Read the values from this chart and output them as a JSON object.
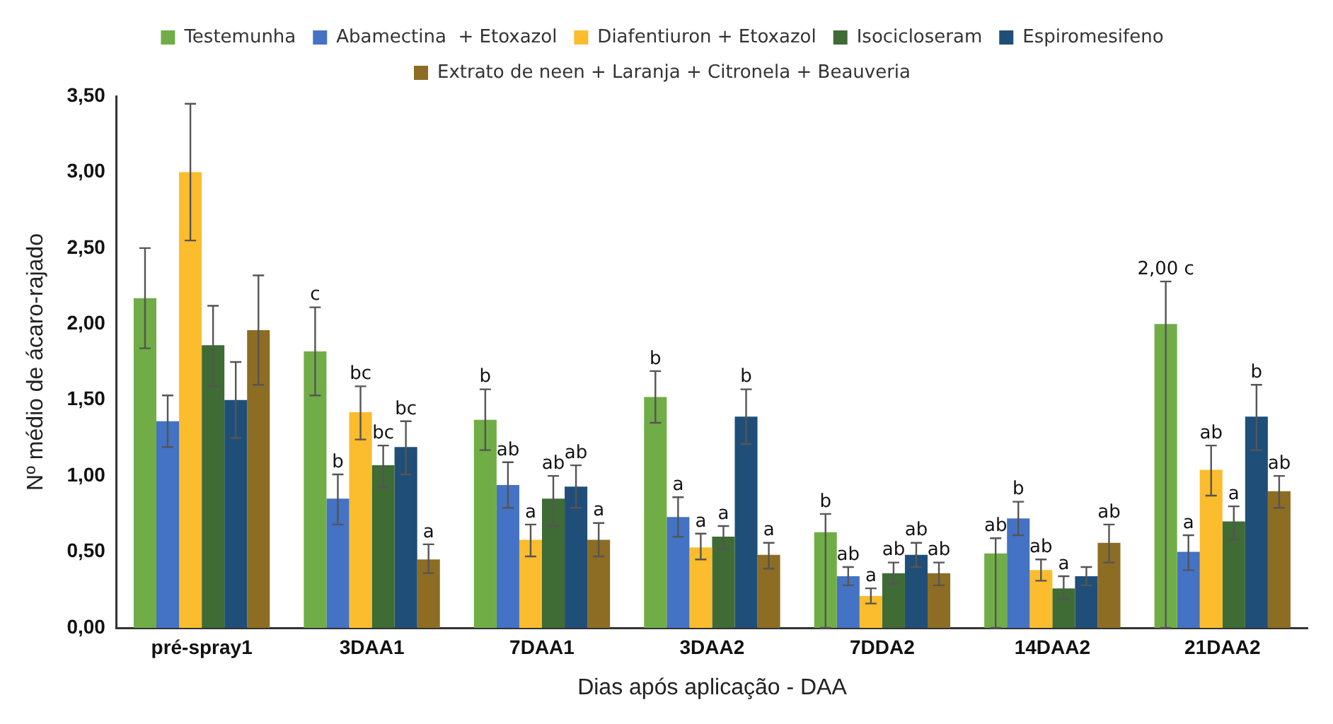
{
  "chart_data": {
    "type": "bar",
    "xlabel": "Dias após aplicação - DAA",
    "ylabel": "Nº médio de ácaro-rajado",
    "categories": [
      "pré-spray1",
      "3DAA1",
      "7DAA1",
      "3DAA2",
      "7DDA2",
      "14DAA2",
      "21DAA2"
    ],
    "ylim": [
      0,
      3.5
    ],
    "yticks": [
      {
        "value": 0,
        "label": "0,00"
      },
      {
        "value": 0.5,
        "label": "0,50"
      },
      {
        "value": 1,
        "label": "1,00"
      },
      {
        "value": 1.5,
        "label": "1,50"
      },
      {
        "value": 2,
        "label": "2,00"
      },
      {
        "value": 2.5,
        "label": "2,50"
      },
      {
        "value": 3,
        "label": "3,00"
      },
      {
        "value": 3.5,
        "label": "3,50"
      }
    ],
    "grid": false,
    "legend": "top",
    "series": [
      {
        "name": "Testemunha",
        "color": "#70ad47",
        "values": [
          2.17,
          1.82,
          1.37,
          1.52,
          0.63,
          0.49,
          2.0
        ],
        "errors": [
          [
            1.84,
            2.5
          ],
          [
            1.53,
            2.11
          ],
          [
            1.17,
            1.57
          ],
          [
            1.35,
            1.69
          ],
          [
            0,
            0.75
          ],
          [
            0,
            0.59
          ],
          [
            0,
            2.28
          ]
        ],
        "value_labels": [
          null,
          "c",
          "b",
          "b",
          "b",
          "ab",
          "2,00 c"
        ]
      },
      {
        "name": "Abamectina  + Etoxazol",
        "color": "#4472c4",
        "values": [
          1.36,
          0.85,
          0.94,
          0.73,
          0.34,
          0.72,
          0.5
        ],
        "errors": [
          [
            1.19,
            1.53
          ],
          [
            0.68,
            1.01
          ],
          [
            0.79,
            1.09
          ],
          [
            0.6,
            0.86
          ],
          [
            0.28,
            0.4
          ],
          [
            0.61,
            0.83
          ],
          [
            0.38,
            0.61
          ]
        ],
        "value_labels": [
          null,
          "b",
          "ab",
          "a",
          "ab",
          "b",
          "a"
        ]
      },
      {
        "name": "Diafentiuron + Etoxazol",
        "color": "#fbbc2d",
        "values": [
          3.0,
          1.42,
          0.58,
          0.53,
          0.21,
          0.38,
          1.04
        ],
        "errors": [
          [
            2.55,
            3.45
          ],
          [
            1.24,
            1.59
          ],
          [
            0.47,
            0.68
          ],
          [
            0.45,
            0.62
          ],
          [
            0.16,
            0.26
          ],
          [
            0.31,
            0.45
          ],
          [
            0.87,
            1.2
          ]
        ],
        "value_labels": [
          null,
          "bc",
          "a",
          "a",
          "a",
          "ab",
          "ab"
        ]
      },
      {
        "name": "Isocicloseram",
        "color": "#3f6b35",
        "values": [
          1.86,
          1.07,
          0.85,
          0.6,
          0.36,
          0.26,
          0.7
        ],
        "errors": [
          [
            1.59,
            2.12
          ],
          [
            0.93,
            1.2
          ],
          [
            0.67,
            1.0
          ],
          [
            0.52,
            0.67
          ],
          [
            0.29,
            0.43
          ],
          [
            0.19,
            0.34
          ],
          [
            0.58,
            0.8
          ]
        ],
        "value_labels": [
          null,
          "bc",
          "ab",
          "a",
          "ab",
          "a",
          "a"
        ]
      },
      {
        "name": "Espiromesifeno",
        "color": "#1f4e79",
        "values": [
          1.5,
          1.19,
          0.93,
          1.39,
          0.48,
          0.34,
          1.39
        ],
        "errors": [
          [
            1.25,
            1.75
          ],
          [
            1.01,
            1.36
          ],
          [
            0.79,
            1.07
          ],
          [
            1.21,
            1.57
          ],
          [
            0.4,
            0.56
          ],
          [
            0.28,
            0.4
          ],
          [
            1.17,
            1.6
          ]
        ],
        "value_labels": [
          null,
          "bc",
          "ab",
          "b",
          "ab",
          null,
          "b"
        ]
      },
      {
        "name": "Extrato de neen + Laranja + Citronela + Beauveria",
        "color": "#8c6d23",
        "values": [
          1.96,
          0.45,
          0.58,
          0.48,
          0.36,
          0.56,
          0.9
        ],
        "errors": [
          [
            1.6,
            2.32
          ],
          [
            0.36,
            0.55
          ],
          [
            0.47,
            0.69
          ],
          [
            0.39,
            0.56
          ],
          [
            0.28,
            0.43
          ],
          [
            0.43,
            0.68
          ],
          [
            0.79,
            1.0
          ]
        ],
        "value_labels": [
          null,
          "a",
          "a",
          "a",
          "ab",
          "ab",
          "ab"
        ]
      }
    ]
  }
}
